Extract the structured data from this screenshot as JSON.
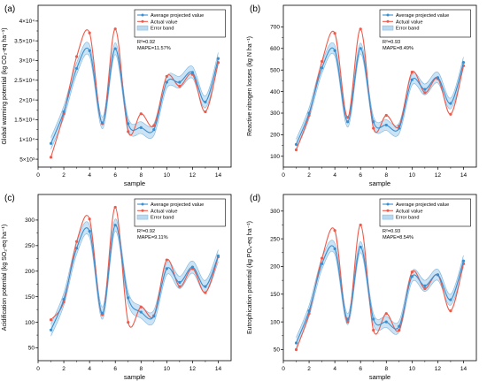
{
  "chart_data": [
    {
      "type": "line",
      "panel_label": "(a)",
      "xlabel": "sample",
      "ylabel": "Global warming potential (kg CO₂-eq ha⁻¹)",
      "xlim": [
        0,
        15
      ],
      "ylim": [
        3000,
        44000
      ],
      "xticks": [
        0,
        2,
        4,
        6,
        8,
        10,
        12,
        14
      ],
      "yticks": [
        5000,
        10000,
        15000,
        20000,
        25000,
        30000,
        35000,
        40000
      ],
      "ytick_labels": [
        "5×10³",
        "1×10⁴",
        "1.5×10⁴",
        "2×10⁴",
        "2.5×10⁴",
        "3×10⁴",
        "3.5×10⁴",
        "4×10⁴"
      ],
      "x": [
        1,
        2,
        3,
        4,
        5,
        6,
        7,
        8,
        9,
        10,
        11,
        12,
        13,
        14
      ],
      "series": [
        {
          "name": "Average projected value",
          "values": [
            9000,
            17000,
            28000,
            32500,
            14200,
            33000,
            14000,
            13000,
            12500,
            24500,
            24500,
            27000,
            19500,
            30500
          ]
        },
        {
          "name": "Actual value",
          "values": [
            5500,
            16500,
            31000,
            37000,
            14000,
            38000,
            12000,
            16500,
            13500,
            26000,
            23500,
            26500,
            17000,
            29500
          ]
        },
        {
          "name": "Error band",
          "values": [
            1500,
            1500,
            1500,
            1500,
            1500,
            1500,
            1500,
            1500,
            1500,
            1500,
            1500,
            1500,
            1500,
            1500
          ]
        }
      ],
      "legend_position": "top-right",
      "legend_notes": [
        "R²=0.92",
        "MAPE=11.57%"
      ]
    },
    {
      "type": "line",
      "panel_label": "(b)",
      "xlabel": "sample",
      "ylabel": "Reactive nitrogen losses (kg N ha⁻¹)",
      "xlim": [
        0,
        15
      ],
      "ylim": [
        50,
        800
      ],
      "xticks": [
        0,
        2,
        4,
        6,
        8,
        10,
        12,
        14
      ],
      "yticks": [
        100,
        200,
        300,
        400,
        500,
        600,
        700
      ],
      "ytick_labels": [
        "100",
        "200",
        "300",
        "400",
        "500",
        "600",
        "700"
      ],
      "x": [
        1,
        2,
        3,
        4,
        5,
        6,
        7,
        8,
        9,
        10,
        11,
        12,
        13,
        14
      ],
      "series": [
        {
          "name": "Average projected value",
          "values": [
            155,
            300,
            510,
            590,
            260,
            600,
            260,
            245,
            230,
            455,
            410,
            465,
            345,
            535
          ]
        },
        {
          "name": "Actual value",
          "values": [
            130,
            290,
            540,
            670,
            280,
            690,
            230,
            290,
            240,
            490,
            395,
            460,
            295,
            520
          ]
        },
        {
          "name": "Error band",
          "values": [
            25,
            25,
            25,
            25,
            25,
            25,
            25,
            25,
            25,
            25,
            25,
            25,
            25,
            25
          ]
        }
      ],
      "legend_position": "top-right",
      "legend_notes": [
        "R²=0.93",
        "MAPE=8.49%"
      ]
    },
    {
      "type": "line",
      "panel_label": "(c)",
      "xlabel": "sample",
      "ylabel": "Acidification potential (kg SO₂-eq ha⁻¹)",
      "xlim": [
        0,
        15
      ],
      "ylim": [
        25,
        350
      ],
      "xticks": [
        0,
        2,
        4,
        6,
        8,
        10,
        12,
        14
      ],
      "yticks": [
        50,
        100,
        150,
        200,
        250,
        300
      ],
      "ytick_labels": [
        "50",
        "100",
        "150",
        "200",
        "250",
        "300"
      ],
      "x": [
        1,
        2,
        3,
        4,
        5,
        6,
        7,
        8,
        9,
        10,
        11,
        12,
        13,
        14
      ],
      "series": [
        {
          "name": "Average projected value",
          "values": [
            85,
            145,
            245,
            278,
            118,
            290,
            148,
            120,
            112,
            205,
            178,
            208,
            170,
            230
          ]
        },
        {
          "name": "Actual value",
          "values": [
            105,
            140,
            258,
            302,
            115,
            325,
            100,
            130,
            113,
            222,
            170,
            205,
            158,
            228
          ]
        },
        {
          "name": "Error band",
          "values": [
            12,
            12,
            12,
            12,
            12,
            12,
            12,
            12,
            12,
            12,
            12,
            12,
            12,
            12
          ]
        }
      ],
      "legend_position": "top-right",
      "legend_notes": [
        "R²=0.92",
        "MAPE=9.11%"
      ]
    },
    {
      "type": "line",
      "panel_label": "(d)",
      "xlabel": "sample",
      "ylabel": "Eutrophication potential (kg PO₄-eq ha⁻¹)",
      "xlim": [
        0,
        15
      ],
      "ylim": [
        30,
        330
      ],
      "xticks": [
        0,
        2,
        4,
        6,
        8,
        10,
        12,
        14
      ],
      "yticks": [
        50,
        100,
        150,
        200,
        250,
        300
      ],
      "ytick_labels": [
        "50",
        "100",
        "150",
        "200",
        "250",
        "300"
      ],
      "x": [
        1,
        2,
        3,
        4,
        5,
        6,
        7,
        8,
        9,
        10,
        11,
        12,
        13,
        14
      ],
      "series": [
        {
          "name": "Average projected value",
          "values": [
            62,
            120,
            205,
            232,
            105,
            235,
            105,
            100,
            92,
            182,
            165,
            185,
            140,
            210
          ]
        },
        {
          "name": "Actual value",
          "values": [
            50,
            115,
            215,
            265,
            100,
            275,
            85,
            115,
            85,
            190,
            160,
            185,
            120,
            205
          ]
        },
        {
          "name": "Error band",
          "values": [
            10,
            10,
            10,
            10,
            10,
            10,
            10,
            10,
            10,
            10,
            10,
            10,
            10,
            10
          ]
        }
      ],
      "legend_position": "top-right",
      "legend_notes": [
        "R²=0.93",
        "MAPE=8.54%"
      ]
    }
  ],
  "colors": {
    "projected": "#3a8fd1",
    "actual": "#ef5a4a",
    "band": "#b9d9f0",
    "band_edge": "#7fb6de"
  }
}
